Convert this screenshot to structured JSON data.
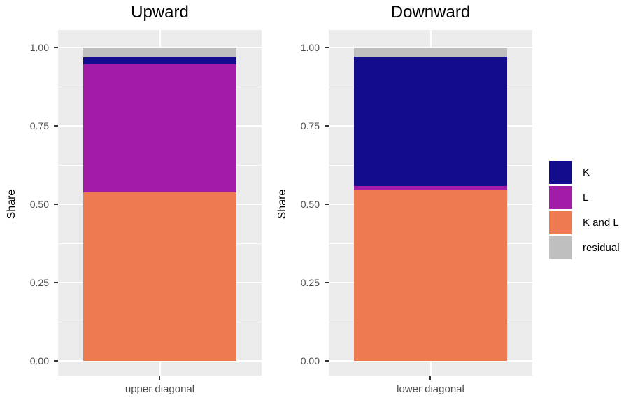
{
  "chart_data": {
    "type": "bar",
    "stacked": true,
    "title": "",
    "ylim": [
      0,
      1
    ],
    "y_ticks": [
      "1.00",
      "0.75",
      "0.50",
      "0.25",
      "0.00"
    ],
    "y_tick_values": [
      1.0,
      0.75,
      0.5,
      0.25,
      0.0
    ],
    "y_minor_tick_values": [
      0.875,
      0.625,
      0.375,
      0.125
    ],
    "grid": "on",
    "legend_position": "right",
    "panels": [
      {
        "title": "Upward",
        "ylabel": "Share",
        "category": "upper diagonal",
        "segments": [
          {
            "name": "K and L",
            "value": 0.538
          },
          {
            "name": "L",
            "value": 0.408
          },
          {
            "name": "K",
            "value": 0.022
          },
          {
            "name": "residual",
            "value": 0.032
          }
        ]
      },
      {
        "title": "Downward",
        "ylabel": "Share",
        "category": "lower diagonal",
        "segments": [
          {
            "name": "K and L",
            "value": 0.545
          },
          {
            "name": "L",
            "value": 0.014
          },
          {
            "name": "K",
            "value": 0.412
          },
          {
            "name": "residual",
            "value": 0.029
          }
        ]
      }
    ],
    "legend": [
      {
        "label": "K",
        "color": "#130C8D"
      },
      {
        "label": "L",
        "color": "#A21CA8"
      },
      {
        "label": "K and L",
        "color": "#EE7A51"
      },
      {
        "label": "residual",
        "color": "#BFBFBF"
      }
    ],
    "colors": {
      "K": "#130C8D",
      "L": "#A21CA8",
      "K and L": "#EE7A51",
      "residual": "#BFBFBF"
    },
    "style_colors": {
      "panel_background": "#EBEBEB",
      "gridline": "#FFFFFF",
      "tick_mark": "#333333",
      "tick_label": "#4D4D4D",
      "text": "#000000"
    }
  }
}
